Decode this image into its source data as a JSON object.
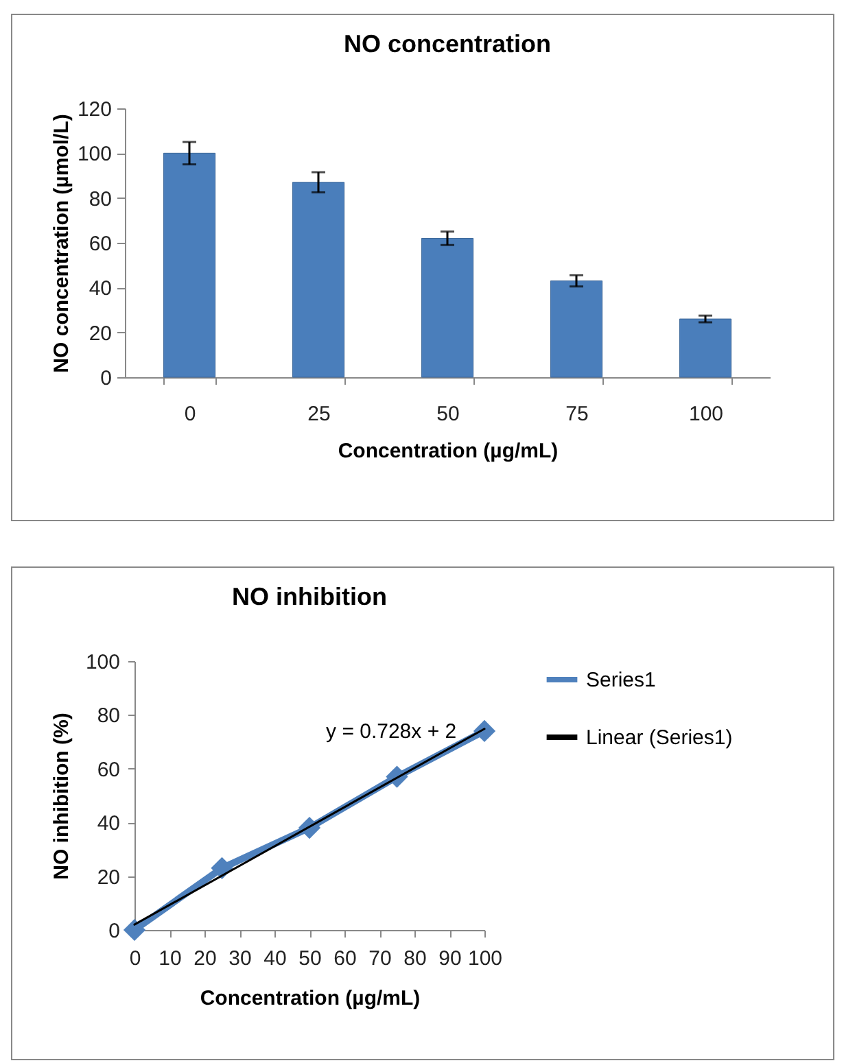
{
  "chart_data": [
    {
      "type": "bar",
      "title": "NO concentration",
      "xlabel": "Concentration (µg/mL)",
      "ylabel": "NO concentration (µmol/L)",
      "categories": [
        "0",
        "25",
        "50",
        "75",
        "100"
      ],
      "values": [
        100,
        87,
        62,
        43,
        26
      ],
      "errors": [
        5,
        4.5,
        3,
        2.5,
        1.5
      ],
      "color": "#4a7ebb",
      "ylim": [
        0,
        120
      ],
      "yticks": [
        0,
        20,
        40,
        60,
        80,
        100,
        120
      ]
    },
    {
      "type": "line",
      "title": "NO inhibition",
      "xlabel": "Concentration (µg/mL)",
      "ylabel": "NO inhibition (%)",
      "series": [
        {
          "name": "Series1",
          "color": "#4f81bd",
          "x": [
            0,
            25,
            50,
            75,
            100
          ],
          "values": [
            0,
            23,
            38,
            57,
            74
          ],
          "marker": "diamond"
        },
        {
          "name": "Linear (Series1)",
          "color": "#000000",
          "x": [
            0,
            100
          ],
          "values": [
            2,
            74.8
          ],
          "marker": "none"
        }
      ],
      "annotations": [
        "y = 0.728x + 2"
      ],
      "xlim": [
        0,
        100
      ],
      "xticks": [
        0,
        10,
        20,
        30,
        40,
        50,
        60,
        70,
        80,
        90,
        100
      ],
      "ylim": [
        0,
        100
      ],
      "yticks": [
        0,
        20,
        40,
        60,
        80,
        100
      ],
      "legend": "right"
    }
  ]
}
